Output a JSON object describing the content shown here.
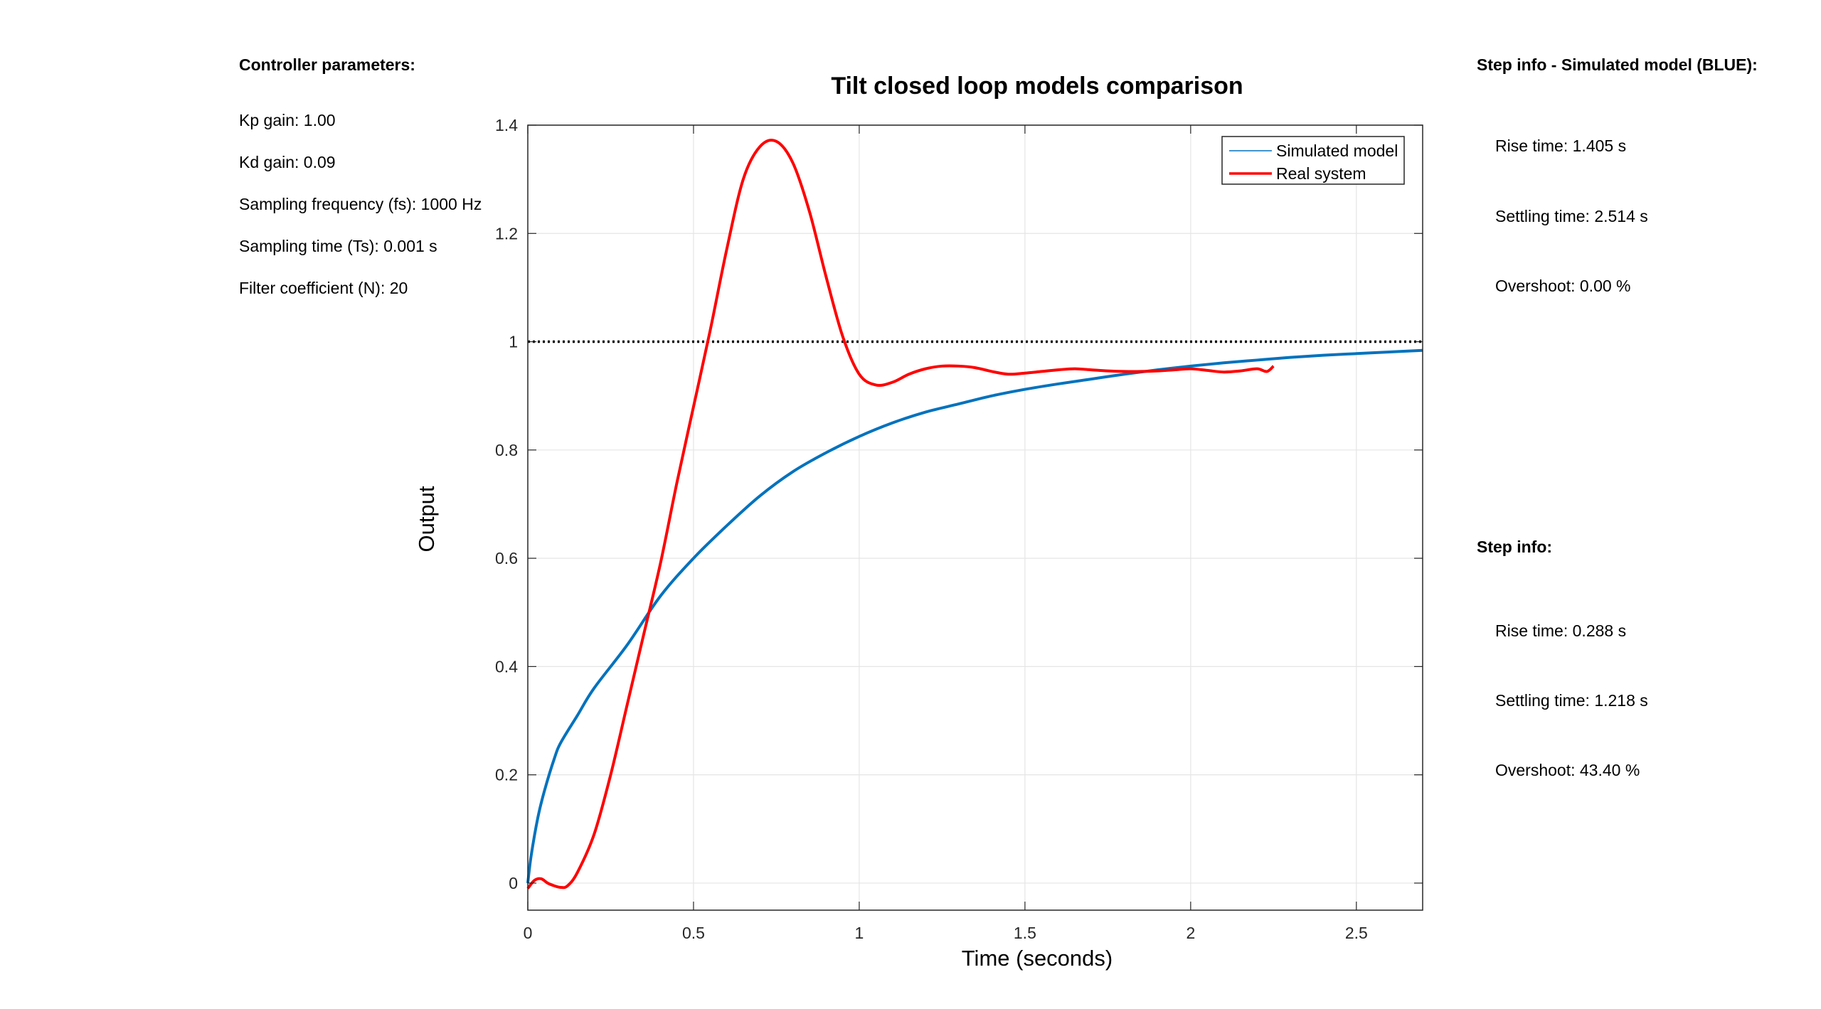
{
  "controller_panel": {
    "heading": "Controller parameters:",
    "lines": [
      "Kp gain: 1.00",
      "Kd gain: 0.09",
      "Sampling frequency (fs): 1000 Hz",
      "Sampling time (Ts): 0.001 s",
      "Filter coefficient (N): 20"
    ]
  },
  "sim_step_info": {
    "heading": "Step info - Simulated model (BLUE):",
    "lines": [
      "Rise time: 1.405 s",
      "Settling time: 2.514 s",
      "Overshoot: 0.00 %"
    ]
  },
  "real_step_info": {
    "heading": "Step info:",
    "lines": [
      "Rise time: 0.288 s",
      "Settling time: 1.218 s",
      "Overshoot: 43.40 %"
    ]
  },
  "colors": {
    "simulated": "#0072bd",
    "real": "#ff0000",
    "reference": "#000000",
    "grid": "#e5e5e5",
    "axis": "#262626"
  },
  "chart_data": {
    "type": "line",
    "title": "Tilt closed loop models comparison",
    "xlabel": "Time (seconds)",
    "ylabel": "Output",
    "xlim": [
      0,
      2.7
    ],
    "ylim": [
      -0.05,
      1.4
    ],
    "xticks": [
      0,
      0.5,
      1,
      1.5,
      2,
      2.5
    ],
    "xtick_labels": [
      "0",
      "0.5",
      "1",
      "1.5",
      "2",
      "2.5"
    ],
    "yticks": [
      0,
      0.2,
      0.4,
      0.6,
      0.8,
      1,
      1.2,
      1.4
    ],
    "ytick_labels": [
      "0",
      "0.2",
      "0.4",
      "0.6",
      "0.8",
      "1",
      "1.2",
      "1.4"
    ],
    "grid": true,
    "legend_position": "top-right",
    "reference": {
      "y": 1.0,
      "style": "dotted"
    },
    "series": [
      {
        "name": "Simulated model",
        "x": [
          0,
          0.01,
          0.03,
          0.05,
          0.08,
          0.1,
          0.15,
          0.2,
          0.3,
          0.4,
          0.5,
          0.6,
          0.7,
          0.8,
          0.9,
          1.0,
          1.1,
          1.2,
          1.3,
          1.4,
          1.5,
          1.6,
          1.7,
          1.8,
          1.9,
          2.0,
          2.1,
          2.2,
          2.3,
          2.4,
          2.5,
          2.6,
          2.7
        ],
        "y": [
          0,
          0.05,
          0.12,
          0.17,
          0.23,
          0.26,
          0.31,
          0.36,
          0.44,
          0.53,
          0.6,
          0.66,
          0.715,
          0.76,
          0.795,
          0.825,
          0.85,
          0.87,
          0.885,
          0.9,
          0.912,
          0.922,
          0.931,
          0.94,
          0.948,
          0.955,
          0.961,
          0.966,
          0.971,
          0.975,
          0.978,
          0.981,
          0.984
        ]
      },
      {
        "name": "Real system",
        "x": [
          0,
          0.02,
          0.04,
          0.06,
          0.08,
          0.1,
          0.12,
          0.15,
          0.2,
          0.25,
          0.3,
          0.35,
          0.4,
          0.45,
          0.5,
          0.55,
          0.6,
          0.65,
          0.7,
          0.75,
          0.8,
          0.85,
          0.9,
          0.95,
          1.0,
          1.05,
          1.1,
          1.15,
          1.2,
          1.25,
          1.3,
          1.35,
          1.4,
          1.45,
          1.5,
          1.55,
          1.6,
          1.65,
          1.7,
          1.75,
          1.8,
          1.85,
          1.9,
          1.95,
          2.0,
          2.05,
          2.1,
          2.15,
          2.2,
          2.23,
          2.25
        ],
        "y": [
          -0.01,
          0.005,
          0.008,
          0.0,
          -0.005,
          -0.008,
          -0.005,
          0.02,
          0.09,
          0.2,
          0.33,
          0.46,
          0.59,
          0.74,
          0.88,
          1.02,
          1.17,
          1.3,
          1.36,
          1.37,
          1.33,
          1.24,
          1.12,
          1.01,
          0.94,
          0.92,
          0.925,
          0.94,
          0.95,
          0.955,
          0.955,
          0.952,
          0.945,
          0.94,
          0.942,
          0.945,
          0.948,
          0.95,
          0.948,
          0.946,
          0.945,
          0.945,
          0.946,
          0.948,
          0.95,
          0.947,
          0.944,
          0.946,
          0.95,
          0.945,
          0.955
        ]
      }
    ]
  }
}
